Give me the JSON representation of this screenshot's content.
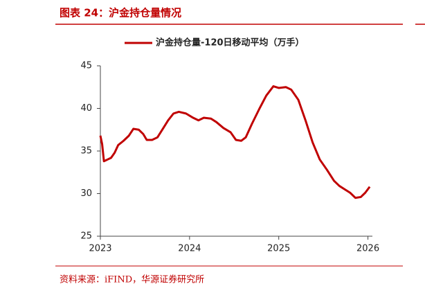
{
  "chart_data": {
    "type": "line",
    "title": "图表 24：沪金持仓量情况",
    "source": "资料来源：iFIND，华源证券研究所",
    "x": [
      2023.0,
      2023.02,
      2023.04,
      2023.08,
      2023.12,
      2023.16,
      2023.2,
      2023.26,
      2023.32,
      2023.37,
      2023.43,
      2023.48,
      2023.52,
      2023.58,
      2023.64,
      2023.7,
      2023.76,
      2023.82,
      2023.88,
      2023.96,
      2024.04,
      2024.1,
      2024.16,
      2024.24,
      2024.3,
      2024.38,
      2024.46,
      2024.52,
      2024.58,
      2024.63,
      2024.7,
      2024.78,
      2024.86,
      2024.94,
      2025.0,
      2025.08,
      2025.14,
      2025.22,
      2025.3,
      2025.38,
      2025.46,
      2025.54,
      2025.62,
      2025.68,
      2025.74,
      2025.8,
      2025.86,
      2025.92,
      2025.97,
      2026.02
    ],
    "series": [
      {
        "name": "沪金持仓量-120日移动平均（万手）",
        "color": "#c00000",
        "values": [
          36.8,
          35.8,
          33.8,
          34.0,
          34.2,
          34.8,
          35.7,
          36.2,
          36.8,
          37.6,
          37.5,
          37.0,
          36.3,
          36.3,
          36.6,
          37.6,
          38.6,
          39.4,
          39.6,
          39.4,
          38.9,
          38.6,
          38.9,
          38.8,
          38.4,
          37.7,
          37.2,
          36.3,
          36.2,
          36.6,
          38.2,
          39.9,
          41.5,
          42.6,
          42.4,
          42.5,
          42.2,
          41.0,
          38.6,
          36.0,
          34.0,
          32.8,
          31.5,
          30.9,
          30.5,
          30.1,
          29.5,
          29.6,
          30.1,
          30.8
        ]
      }
    ],
    "xlim": [
      2023,
      2026.05
    ],
    "xticks": [
      2023,
      2024,
      2025,
      2026
    ],
    "ylim": [
      25,
      45
    ],
    "yticks": [
      25,
      30,
      35,
      40,
      45
    ],
    "grid": false
  }
}
